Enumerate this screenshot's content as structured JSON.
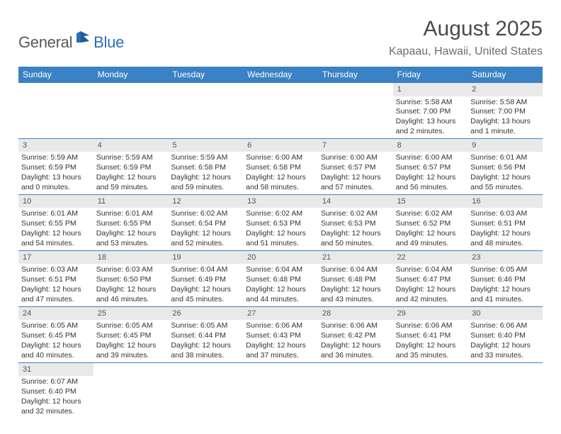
{
  "logo": {
    "general": "General",
    "blue": "Blue"
  },
  "header": {
    "month_title": "August 2025",
    "location": "Kapaau, Hawaii, United States"
  },
  "colors": {
    "header_bg": "#3b82c4",
    "header_text": "#ffffff",
    "daynum_bg": "#e9e9e9",
    "row_border": "#3b82c4",
    "text": "#333333"
  },
  "calendar": {
    "day_of_week": [
      "Sunday",
      "Monday",
      "Tuesday",
      "Wednesday",
      "Thursday",
      "Friday",
      "Saturday"
    ],
    "weeks": [
      [
        null,
        null,
        null,
        null,
        null,
        {
          "n": "1",
          "sr": "Sunrise: 5:58 AM",
          "ss": "Sunset: 7:00 PM",
          "dl": "Daylight: 13 hours and 2 minutes."
        },
        {
          "n": "2",
          "sr": "Sunrise: 5:58 AM",
          "ss": "Sunset: 7:00 PM",
          "dl": "Daylight: 13 hours and 1 minute."
        }
      ],
      [
        {
          "n": "3",
          "sr": "Sunrise: 5:59 AM",
          "ss": "Sunset: 6:59 PM",
          "dl": "Daylight: 13 hours and 0 minutes."
        },
        {
          "n": "4",
          "sr": "Sunrise: 5:59 AM",
          "ss": "Sunset: 6:59 PM",
          "dl": "Daylight: 12 hours and 59 minutes."
        },
        {
          "n": "5",
          "sr": "Sunrise: 5:59 AM",
          "ss": "Sunset: 6:58 PM",
          "dl": "Daylight: 12 hours and 59 minutes."
        },
        {
          "n": "6",
          "sr": "Sunrise: 6:00 AM",
          "ss": "Sunset: 6:58 PM",
          "dl": "Daylight: 12 hours and 58 minutes."
        },
        {
          "n": "7",
          "sr": "Sunrise: 6:00 AM",
          "ss": "Sunset: 6:57 PM",
          "dl": "Daylight: 12 hours and 57 minutes."
        },
        {
          "n": "8",
          "sr": "Sunrise: 6:00 AM",
          "ss": "Sunset: 6:57 PM",
          "dl": "Daylight: 12 hours and 56 minutes."
        },
        {
          "n": "9",
          "sr": "Sunrise: 6:01 AM",
          "ss": "Sunset: 6:56 PM",
          "dl": "Daylight: 12 hours and 55 minutes."
        }
      ],
      [
        {
          "n": "10",
          "sr": "Sunrise: 6:01 AM",
          "ss": "Sunset: 6:55 PM",
          "dl": "Daylight: 12 hours and 54 minutes."
        },
        {
          "n": "11",
          "sr": "Sunrise: 6:01 AM",
          "ss": "Sunset: 6:55 PM",
          "dl": "Daylight: 12 hours and 53 minutes."
        },
        {
          "n": "12",
          "sr": "Sunrise: 6:02 AM",
          "ss": "Sunset: 6:54 PM",
          "dl": "Daylight: 12 hours and 52 minutes."
        },
        {
          "n": "13",
          "sr": "Sunrise: 6:02 AM",
          "ss": "Sunset: 6:53 PM",
          "dl": "Daylight: 12 hours and 51 minutes."
        },
        {
          "n": "14",
          "sr": "Sunrise: 6:02 AM",
          "ss": "Sunset: 6:53 PM",
          "dl": "Daylight: 12 hours and 50 minutes."
        },
        {
          "n": "15",
          "sr": "Sunrise: 6:02 AM",
          "ss": "Sunset: 6:52 PM",
          "dl": "Daylight: 12 hours and 49 minutes."
        },
        {
          "n": "16",
          "sr": "Sunrise: 6:03 AM",
          "ss": "Sunset: 6:51 PM",
          "dl": "Daylight: 12 hours and 48 minutes."
        }
      ],
      [
        {
          "n": "17",
          "sr": "Sunrise: 6:03 AM",
          "ss": "Sunset: 6:51 PM",
          "dl": "Daylight: 12 hours and 47 minutes."
        },
        {
          "n": "18",
          "sr": "Sunrise: 6:03 AM",
          "ss": "Sunset: 6:50 PM",
          "dl": "Daylight: 12 hours and 46 minutes."
        },
        {
          "n": "19",
          "sr": "Sunrise: 6:04 AM",
          "ss": "Sunset: 6:49 PM",
          "dl": "Daylight: 12 hours and 45 minutes."
        },
        {
          "n": "20",
          "sr": "Sunrise: 6:04 AM",
          "ss": "Sunset: 6:48 PM",
          "dl": "Daylight: 12 hours and 44 minutes."
        },
        {
          "n": "21",
          "sr": "Sunrise: 6:04 AM",
          "ss": "Sunset: 6:48 PM",
          "dl": "Daylight: 12 hours and 43 minutes."
        },
        {
          "n": "22",
          "sr": "Sunrise: 6:04 AM",
          "ss": "Sunset: 6:47 PM",
          "dl": "Daylight: 12 hours and 42 minutes."
        },
        {
          "n": "23",
          "sr": "Sunrise: 6:05 AM",
          "ss": "Sunset: 6:46 PM",
          "dl": "Daylight: 12 hours and 41 minutes."
        }
      ],
      [
        {
          "n": "24",
          "sr": "Sunrise: 6:05 AM",
          "ss": "Sunset: 6:45 PM",
          "dl": "Daylight: 12 hours and 40 minutes."
        },
        {
          "n": "25",
          "sr": "Sunrise: 6:05 AM",
          "ss": "Sunset: 6:45 PM",
          "dl": "Daylight: 12 hours and 39 minutes."
        },
        {
          "n": "26",
          "sr": "Sunrise: 6:05 AM",
          "ss": "Sunset: 6:44 PM",
          "dl": "Daylight: 12 hours and 38 minutes."
        },
        {
          "n": "27",
          "sr": "Sunrise: 6:06 AM",
          "ss": "Sunset: 6:43 PM",
          "dl": "Daylight: 12 hours and 37 minutes."
        },
        {
          "n": "28",
          "sr": "Sunrise: 6:06 AM",
          "ss": "Sunset: 6:42 PM",
          "dl": "Daylight: 12 hours and 36 minutes."
        },
        {
          "n": "29",
          "sr": "Sunrise: 6:06 AM",
          "ss": "Sunset: 6:41 PM",
          "dl": "Daylight: 12 hours and 35 minutes."
        },
        {
          "n": "30",
          "sr": "Sunrise: 6:06 AM",
          "ss": "Sunset: 6:40 PM",
          "dl": "Daylight: 12 hours and 33 minutes."
        }
      ],
      [
        {
          "n": "31",
          "sr": "Sunrise: 6:07 AM",
          "ss": "Sunset: 6:40 PM",
          "dl": "Daylight: 12 hours and 32 minutes."
        },
        null,
        null,
        null,
        null,
        null,
        null
      ]
    ]
  }
}
